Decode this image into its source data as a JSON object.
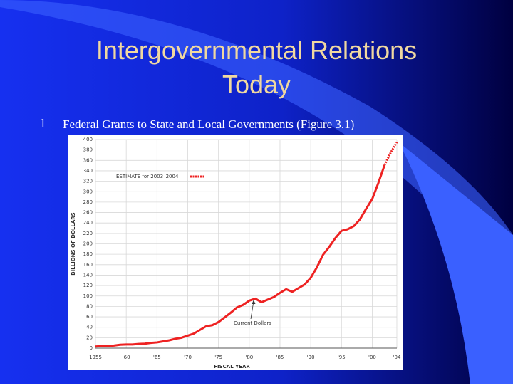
{
  "slide": {
    "title": "Intergovernmental Relations Today",
    "bullet_marker": "l",
    "bullet": "Federal Grants to State and Local Governments (Figure 3.1)"
  },
  "chart_data": {
    "type": "line",
    "x": [
      1955,
      1956,
      1957,
      1958,
      1959,
      1960,
      1961,
      1962,
      1963,
      1964,
      1965,
      1966,
      1967,
      1968,
      1969,
      1970,
      1971,
      1972,
      1973,
      1974,
      1975,
      1976,
      1977,
      1978,
      1979,
      1980,
      1981,
      1982,
      1983,
      1984,
      1985,
      1986,
      1987,
      1988,
      1989,
      1990,
      1991,
      1992,
      1993,
      1994,
      1995,
      1996,
      1997,
      1998,
      1999,
      2000,
      2001,
      2002,
      2003,
      2004
    ],
    "series": [
      {
        "name": "Current Dollars",
        "color": "#ee2222",
        "style": "solid",
        "values": [
          3,
          4,
          4,
          5,
          6.5,
          7,
          7,
          8,
          8.5,
          10,
          11,
          13,
          15,
          18,
          20,
          24,
          28,
          35,
          42,
          44,
          50,
          59,
          68,
          78,
          83,
          91,
          95,
          88,
          93,
          98,
          106,
          113,
          108,
          115,
          122,
          135,
          155,
          179,
          194,
          211,
          225,
          228,
          234,
          247,
          267,
          286,
          317,
          351,
          null,
          null
        ]
      },
      {
        "name": "ESTIMATE for 2003–2004",
        "color": "#ee2222",
        "style": "dotted",
        "values": [
          null,
          null,
          null,
          null,
          null,
          null,
          null,
          null,
          null,
          null,
          null,
          null,
          null,
          null,
          null,
          null,
          null,
          null,
          null,
          null,
          null,
          null,
          null,
          null,
          null,
          null,
          null,
          null,
          null,
          null,
          null,
          null,
          null,
          null,
          null,
          null,
          null,
          null,
          null,
          null,
          null,
          null,
          null,
          null,
          null,
          null,
          null,
          351,
          375,
          395
        ]
      }
    ],
    "xlabel": "FISCAL YEAR",
    "ylabel": "BILLIONS OF DOLLARS",
    "xlim": [
      1955,
      2004
    ],
    "ylim": [
      0,
      400
    ],
    "xticks": [
      1955,
      {
        "value": 1960,
        "label": "'60"
      },
      {
        "value": 1965,
        "label": "'65"
      },
      {
        "value": 1970,
        "label": "'70"
      },
      {
        "value": 1975,
        "label": "'75"
      },
      {
        "value": 1980,
        "label": "'80"
      },
      {
        "value": 1985,
        "label": "'85"
      },
      {
        "value": 1990,
        "label": "'90"
      },
      {
        "value": 1995,
        "label": "'95"
      },
      {
        "value": 2000,
        "label": "'00"
      },
      {
        "value": 2004,
        "label": "'04"
      }
    ],
    "yticks": [
      0,
      20,
      40,
      60,
      80,
      100,
      120,
      140,
      160,
      180,
      200,
      220,
      240,
      260,
      280,
      300,
      320,
      340,
      360,
      380,
      400
    ],
    "grid": true
  }
}
